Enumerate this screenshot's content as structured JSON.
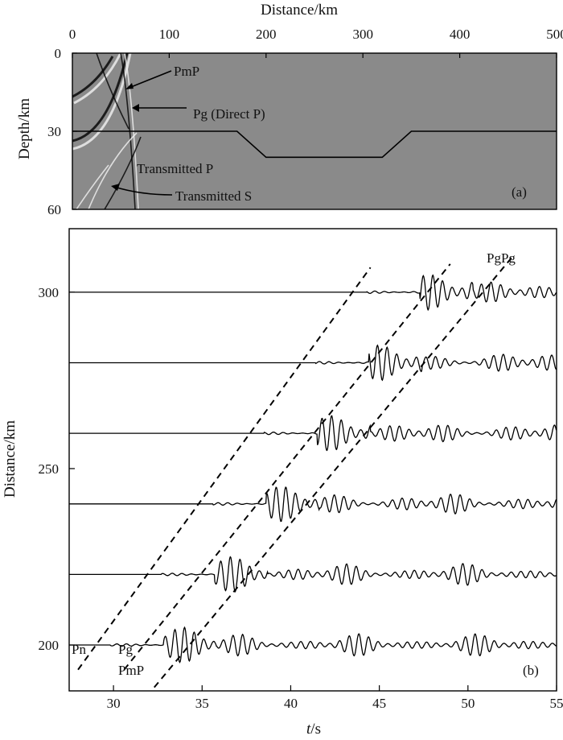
{
  "panel_a": {
    "x_label": "Distance/km",
    "y_label": "Depth/km",
    "x_ticks": [
      "0",
      "100",
      "200",
      "300",
      "400",
      "500"
    ],
    "y_ticks": [
      "0",
      "30",
      "60"
    ],
    "panel_label": "(a)",
    "annotations": {
      "pmp": "PmP",
      "pg": "Pg (Direct P)",
      "transmitted_p": "Transmitted P",
      "transmitted_s": "Transmitted S"
    },
    "background_color": "#8a8a8a"
  },
  "panel_b": {
    "x_label_italic": "t",
    "x_label_rest": "/s",
    "y_label": "Distance/km",
    "x_ticks": [
      "30",
      "35",
      "40",
      "45",
      "50",
      "55"
    ],
    "y_ticks": [
      "200",
      "250",
      "300"
    ],
    "panel_label": "(b)",
    "phase_labels": {
      "pn": "Pn",
      "pg": "Pg",
      "pmp": "PmP",
      "pgpg": "PgPg"
    }
  },
  "chart_data": [
    {
      "type": "image",
      "panel": "a",
      "xlabel": "Distance/km",
      "ylabel": "Depth/km",
      "xlim": [
        0,
        500
      ],
      "ylim": [
        0,
        60
      ],
      "moho_interface_km": [
        [
          0,
          30
        ],
        [
          170,
          30
        ],
        [
          200,
          40
        ],
        [
          320,
          40
        ],
        [
          350,
          30
        ],
        [
          500,
          30
        ]
      ],
      "annotations": [
        "PmP",
        "Pg (Direct P)",
        "Transmitted P",
        "Transmitted S"
      ]
    },
    {
      "type": "line",
      "panel": "b",
      "xlabel": "t/s",
      "ylabel": "Distance/km",
      "xlim": [
        27.5,
        55
      ],
      "ylim": [
        187,
        318
      ],
      "trace_offsets_km": [
        200,
        220,
        240,
        260,
        280,
        300
      ],
      "phase_lines": [
        {
          "name": "Pn",
          "t": [
            28.0,
            44.5
          ],
          "d": [
            193,
            307
          ]
        },
        {
          "name": "Pg",
          "t": [
            30.6,
            49.0
          ],
          "d": [
            193,
            308
          ]
        },
        {
          "name": "PgPg",
          "t": [
            32.3,
            52.5
          ],
          "d": [
            188,
            310
          ]
        }
      ],
      "labels": [
        "Pn",
        "Pg",
        "PmP",
        "PgPg"
      ]
    }
  ]
}
